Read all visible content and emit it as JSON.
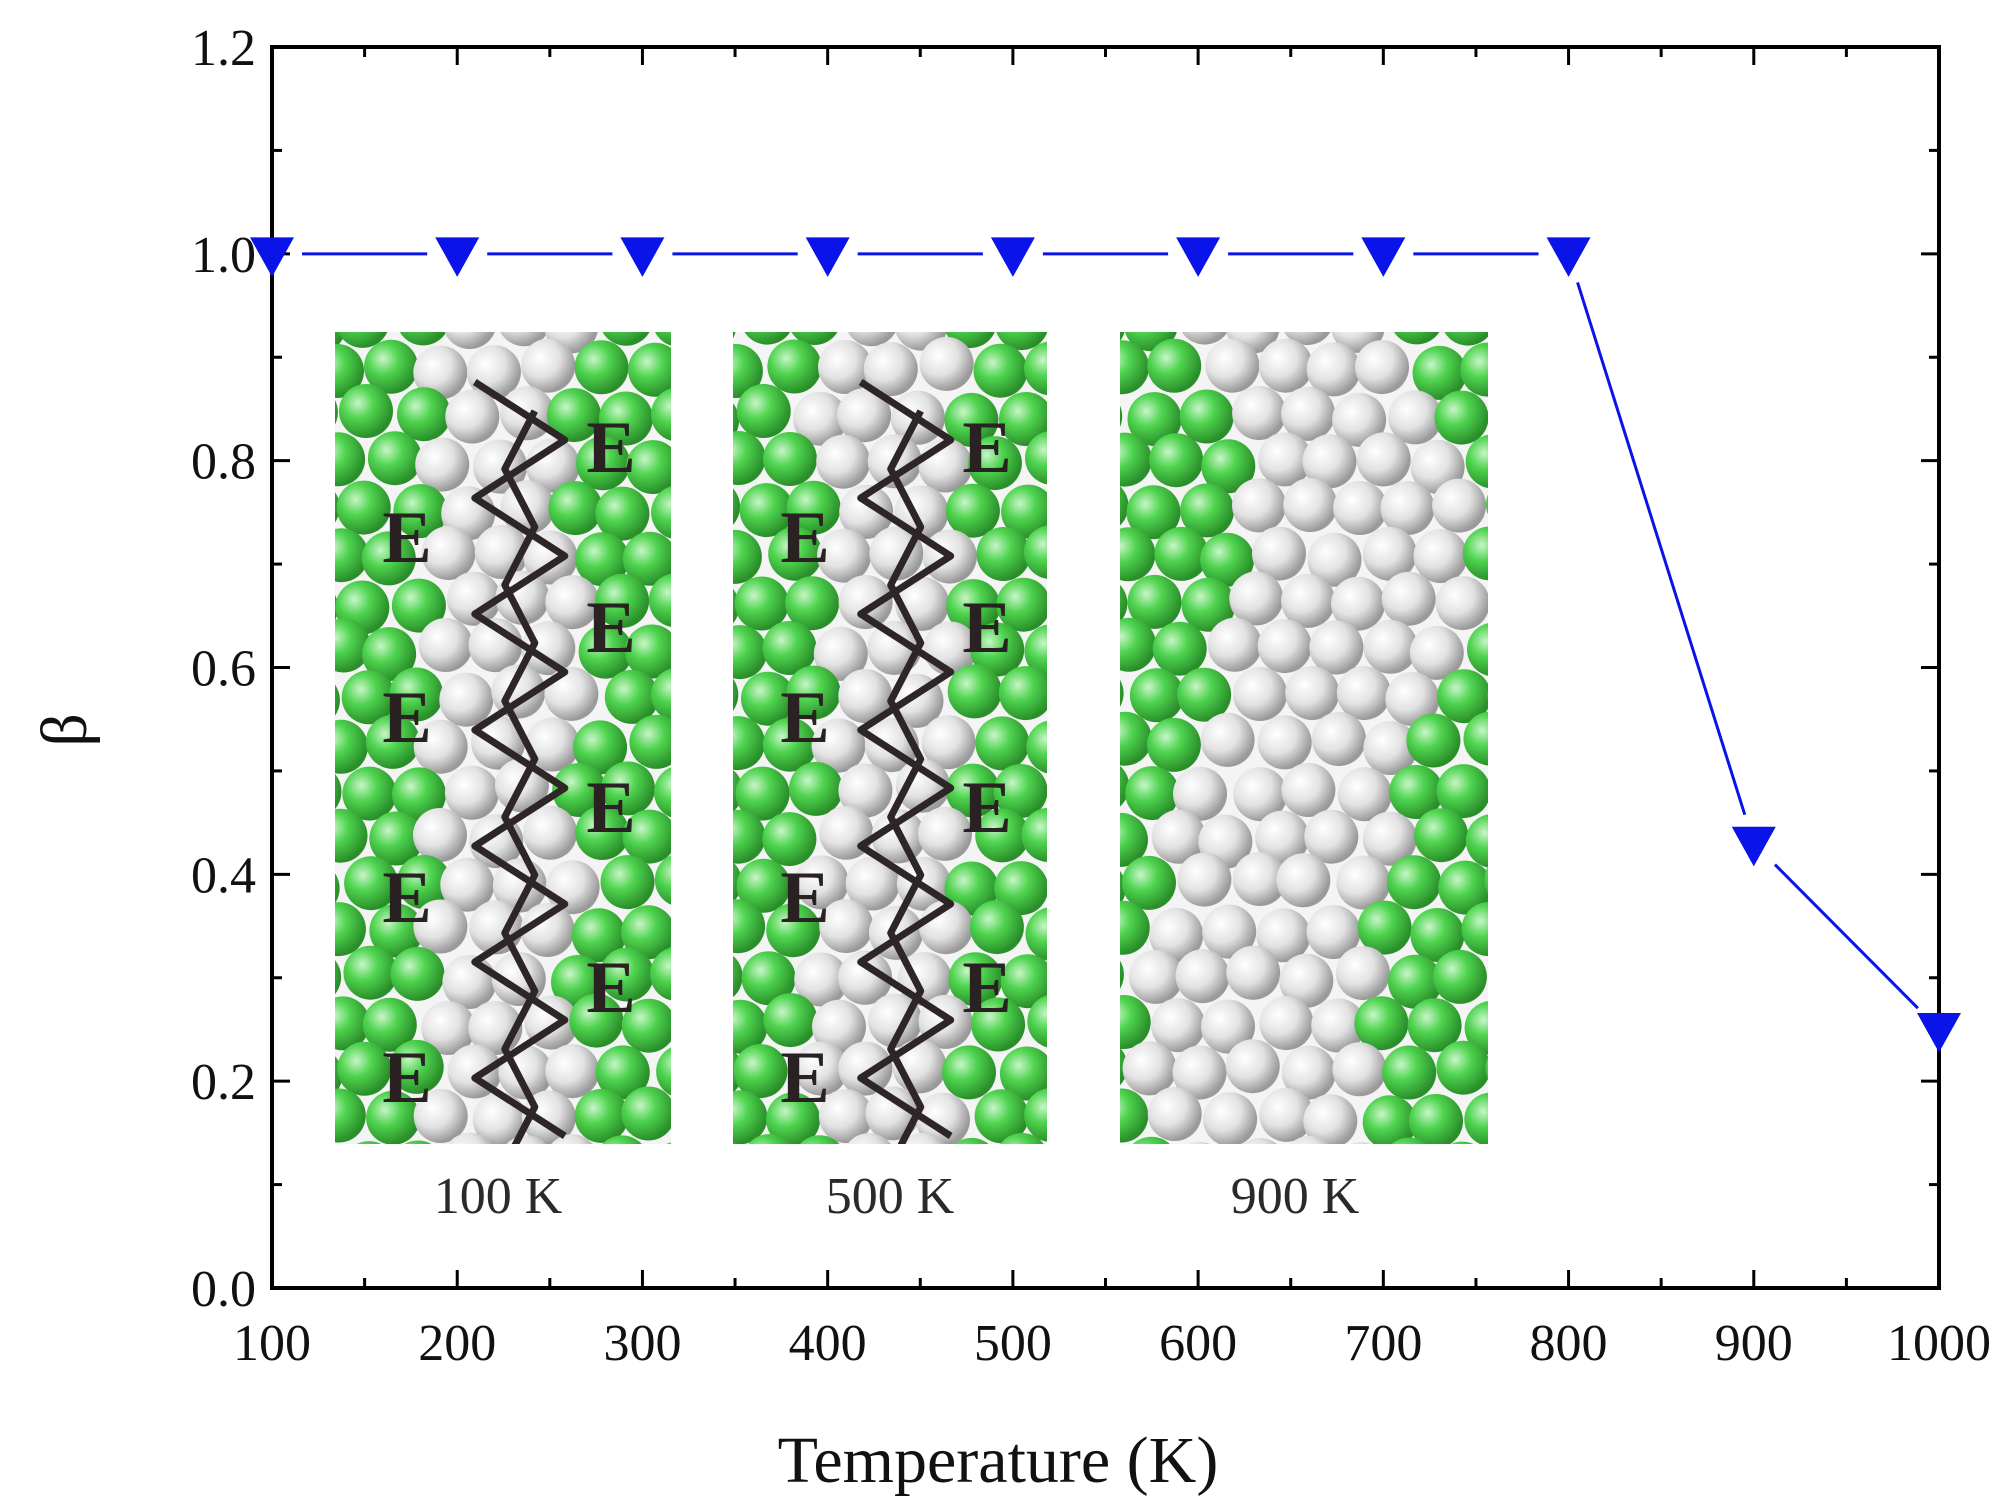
{
  "chart_data": {
    "type": "line",
    "title": "",
    "xlabel": "Temperature (K)",
    "ylabel": "β",
    "xlim": [
      100,
      1000
    ],
    "ylim": [
      0.0,
      1.2
    ],
    "x_ticks": [
      "100",
      "200",
      "300",
      "400",
      "500",
      "600",
      "700",
      "800",
      "900",
      "1000"
    ],
    "y_ticks": [
      "0.0",
      "0.2",
      "0.4",
      "0.6",
      "0.8",
      "1.0",
      "1.2"
    ],
    "grid": false,
    "legend": "none",
    "series": [
      {
        "marker": "down-triangle",
        "color": "#0a14e8",
        "x": [
          100,
          200,
          300,
          400,
          500,
          600,
          700,
          800,
          900,
          1000
        ],
        "y": [
          1.0,
          1.0,
          1.0,
          1.0,
          1.0,
          1.0,
          1.0,
          1.0,
          0.43,
          0.25
        ]
      }
    ],
    "insets": [
      {
        "caption": "100 K",
        "labels": [
          "E",
          "E",
          "E",
          "E",
          "E",
          "E",
          "E",
          "E"
        ],
        "outlined_structure": true
      },
      {
        "caption": "500 K",
        "labels": [
          "E",
          "E",
          "E",
          "E",
          "E",
          "E",
          "E",
          "E"
        ],
        "outlined_structure": true
      },
      {
        "caption": "900 K",
        "labels": [],
        "outlined_structure": false
      }
    ],
    "atom_colors": {
      "green": "#4fd44f",
      "white": "#e6e6e6"
    }
  }
}
